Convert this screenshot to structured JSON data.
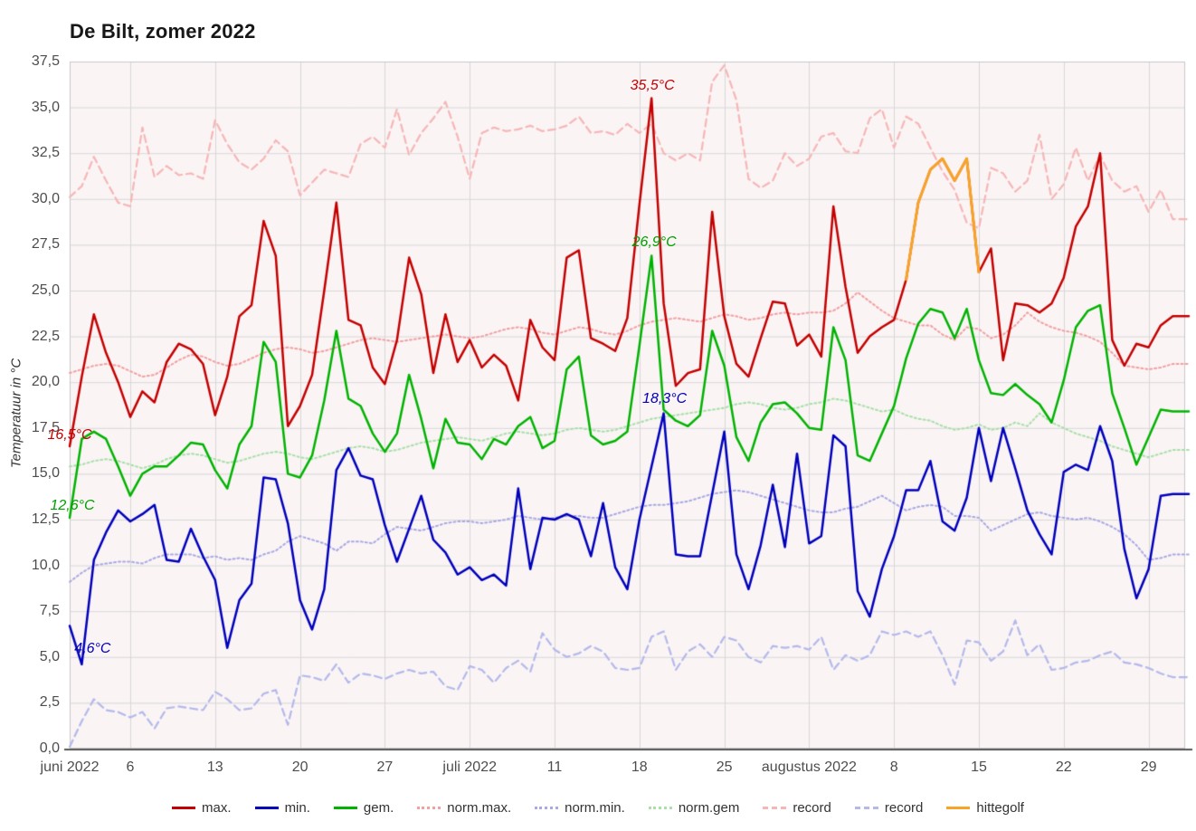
{
  "title": "De Bilt, zomer 2022",
  "y_axis_title": "Temperatuur in °C",
  "colors": {
    "max": "#c40000",
    "min": "#0000bb",
    "gem": "#00b300",
    "norm_max": "#f2a0a0",
    "norm_min": "#a9a9e3",
    "norm_gem": "#a8e0a8",
    "record_max": "#f7b6b6",
    "record_min": "#b4b9ea",
    "hittegolf": "#f7a428",
    "plot_bg": "#faf4f5",
    "grid": "#d8d8d8",
    "axis": "#555555",
    "tick_text": "#4d4d4d"
  },
  "legend": {
    "items": [
      {
        "label": "max.",
        "color": "#c40000",
        "style": "solid"
      },
      {
        "label": "min.",
        "color": "#0000bb",
        "style": "solid"
      },
      {
        "label": "gem.",
        "color": "#00b300",
        "style": "solid"
      },
      {
        "label": "norm.max.",
        "color": "#f2a0a0",
        "style": "dotted"
      },
      {
        "label": "norm.min.",
        "color": "#a9a9e3",
        "style": "dotted"
      },
      {
        "label": "norm.gem",
        "color": "#a8e0a8",
        "style": "dotted"
      },
      {
        "label": "record",
        "color": "#f7b6b6",
        "style": "dashed"
      },
      {
        "label": "record",
        "color": "#b4b9ea",
        "style": "dashed"
      },
      {
        "label": "hittegolf",
        "color": "#f7a428",
        "style": "solid"
      }
    ]
  },
  "chart_data": {
    "type": "line",
    "title": "De Bilt, zomer 2022",
    "xlabel": "",
    "ylabel": "Temperatuur in °C",
    "ylim": [
      0,
      37.5
    ],
    "y_tick_step": 2.5,
    "grid": true,
    "legend_position": "bottom",
    "x_start_date": "2022-06-01",
    "x_end_date": "2022-08-31",
    "y_ticks": [
      {
        "label": "0,0",
        "value": 0
      },
      {
        "label": "2,5",
        "value": 2.5
      },
      {
        "label": "5,0",
        "value": 5
      },
      {
        "label": "7,5",
        "value": 7.5
      },
      {
        "label": "10,0",
        "value": 10
      },
      {
        "label": "12,5",
        "value": 12.5
      },
      {
        "label": "15,0",
        "value": 15
      },
      {
        "label": "17,5",
        "value": 17.5
      },
      {
        "label": "20,0",
        "value": 20
      },
      {
        "label": "22,5",
        "value": 22.5
      },
      {
        "label": "25,0",
        "value": 25
      },
      {
        "label": "27,5",
        "value": 27.5
      },
      {
        "label": "30,0",
        "value": 30
      },
      {
        "label": "32,5",
        "value": 32.5
      },
      {
        "label": "35,0",
        "value": 35
      },
      {
        "label": "37,5",
        "value": 37.5
      }
    ],
    "x_ticks": [
      {
        "label": "juni 2022",
        "day_index": 0
      },
      {
        "label": "6",
        "day_index": 5
      },
      {
        "label": "13",
        "day_index": 12
      },
      {
        "label": "20",
        "day_index": 19
      },
      {
        "label": "27",
        "day_index": 26
      },
      {
        "label": "juli 2022",
        "day_index": 33
      },
      {
        "label": "11",
        "day_index": 40
      },
      {
        "label": "18",
        "day_index": 47
      },
      {
        "label": "25",
        "day_index": 54
      },
      {
        "label": "augustus 2022",
        "day_index": 61
      },
      {
        "label": "8",
        "day_index": 68
      },
      {
        "label": "15",
        "day_index": 75
      },
      {
        "label": "22",
        "day_index": 82
      },
      {
        "label": "29",
        "day_index": 89
      }
    ],
    "series": [
      {
        "name": "max.",
        "key": "max",
        "style": "solid",
        "color": "#c40000",
        "values": [
          16.5,
          20.3,
          23.7,
          21.6,
          20.0,
          18.1,
          19.5,
          18.9,
          21.1,
          22.1,
          21.8,
          21.0,
          18.2,
          20.3,
          23.6,
          24.2,
          28.8,
          26.9,
          17.6,
          18.7,
          20.4,
          25.0,
          29.8,
          23.4,
          23.1,
          20.8,
          19.9,
          22.3,
          26.8,
          24.8,
          20.5,
          23.7,
          21.1,
          22.3,
          20.8,
          21.5,
          20.9,
          19.0,
          23.4,
          21.9,
          21.2,
          26.8,
          27.2,
          22.4,
          22.1,
          21.7,
          23.5,
          29.7,
          35.5,
          24.3,
          19.8,
          20.5,
          20.7,
          29.3,
          23.6,
          21.0,
          20.3,
          22.4,
          24.4,
          24.3,
          22.0,
          22.6,
          21.4,
          29.6,
          25.2,
          21.6,
          22.5,
          23.0,
          23.4,
          25.6,
          29.8,
          31.6,
          32.2,
          31.0,
          32.2,
          26.0,
          27.3,
          21.2,
          24.3,
          24.2,
          23.8,
          24.3,
          25.7,
          28.5,
          29.6,
          32.5,
          22.3,
          20.9,
          22.1,
          21.9,
          23.1,
          23.6
        ]
      },
      {
        "name": "min.",
        "key": "min",
        "style": "solid",
        "color": "#0000bb",
        "values": [
          6.7,
          4.6,
          10.3,
          11.8,
          13.0,
          12.4,
          12.8,
          13.3,
          10.3,
          10.2,
          12.0,
          10.5,
          9.2,
          5.5,
          8.1,
          9.0,
          14.8,
          14.7,
          12.3,
          8.1,
          6.5,
          8.7,
          15.2,
          16.4,
          14.9,
          14.7,
          12.2,
          10.2,
          12.0,
          13.8,
          11.4,
          10.7,
          9.5,
          9.9,
          9.2,
          9.5,
          8.9,
          14.2,
          9.8,
          12.6,
          12.5,
          12.8,
          12.5,
          10.5,
          13.4,
          9.9,
          8.7,
          12.5,
          15.4,
          18.3,
          10.6,
          10.5,
          10.5,
          13.9,
          17.3,
          10.6,
          8.7,
          11.1,
          14.4,
          11.0,
          16.1,
          11.2,
          11.6,
          17.1,
          16.5,
          8.6,
          7.2,
          9.8,
          11.6,
          14.1,
          14.1,
          15.7,
          12.4,
          11.9,
          13.7,
          17.5,
          14.6,
          17.5,
          15.3,
          13.0,
          11.7,
          10.6,
          15.1,
          15.5,
          15.2,
          17.6,
          15.7,
          10.9,
          8.2,
          9.8,
          13.8,
          13.9
        ]
      },
      {
        "name": "gem.",
        "key": "gem",
        "style": "solid",
        "color": "#00b300",
        "values": [
          12.6,
          16.9,
          17.3,
          16.9,
          15.4,
          13.8,
          15.0,
          15.4,
          15.4,
          16.0,
          16.7,
          16.6,
          15.2,
          14.2,
          16.6,
          17.6,
          22.2,
          21.1,
          15.0,
          14.8,
          16.0,
          19.0,
          22.8,
          19.1,
          18.7,
          17.2,
          16.2,
          17.2,
          20.4,
          18.0,
          15.3,
          18.0,
          16.7,
          16.6,
          15.8,
          16.9,
          16.6,
          17.6,
          18.1,
          16.4,
          16.8,
          20.7,
          21.4,
          17.1,
          16.6,
          16.8,
          17.3,
          22.0,
          26.9,
          18.5,
          17.9,
          17.6,
          18.2,
          22.8,
          20.9,
          17.0,
          15.7,
          17.8,
          18.8,
          18.9,
          18.3,
          17.5,
          17.4,
          23.0,
          21.2,
          16.0,
          15.7,
          17.2,
          18.7,
          21.3,
          23.2,
          24.0,
          23.8,
          22.4,
          24.0,
          21.2,
          19.4,
          19.3,
          19.9,
          19.3,
          18.8,
          17.8,
          20.1,
          23.0,
          23.9,
          24.2,
          19.4,
          17.5,
          15.5,
          17.0,
          18.5,
          18.4
        ]
      },
      {
        "name": "norm.max.",
        "key": "norm_max",
        "style": "dotted",
        "color": "#f2a0a0",
        "values": [
          20.5,
          20.7,
          20.9,
          21.0,
          20.9,
          20.6,
          20.3,
          20.4,
          20.8,
          21.2,
          21.5,
          21.4,
          21.1,
          20.9,
          21.0,
          21.3,
          21.6,
          21.8,
          21.9,
          21.8,
          21.6,
          21.7,
          21.9,
          22.1,
          22.3,
          22.4,
          22.3,
          22.2,
          22.3,
          22.4,
          22.5,
          22.6,
          22.5,
          22.4,
          22.5,
          22.7,
          22.9,
          23.0,
          22.9,
          22.7,
          22.6,
          22.8,
          23.0,
          22.9,
          22.7,
          22.6,
          22.8,
          23.1,
          23.3,
          23.4,
          23.5,
          23.4,
          23.3,
          23.5,
          23.7,
          23.6,
          23.4,
          23.5,
          23.7,
          23.8,
          23.7,
          23.8,
          23.8,
          23.9,
          24.3,
          24.9,
          24.4,
          23.9,
          23.5,
          23.3,
          23.1,
          23.1,
          22.6,
          22.3,
          23.0,
          22.9,
          22.4,
          22.6,
          23.1,
          23.8,
          23.3,
          23.0,
          22.8,
          22.7,
          22.5,
          22.2,
          21.6,
          20.9,
          20.8,
          20.7,
          20.8,
          21.0
        ]
      },
      {
        "name": "norm.min.",
        "key": "norm_min",
        "style": "dotted",
        "color": "#a9a9e3",
        "values": [
          9.1,
          9.6,
          10.0,
          10.1,
          10.2,
          10.2,
          10.1,
          10.4,
          10.6,
          10.6,
          10.6,
          10.4,
          10.5,
          10.3,
          10.4,
          10.3,
          10.6,
          10.8,
          11.3,
          11.6,
          11.4,
          11.2,
          10.8,
          11.3,
          11.3,
          11.2,
          11.7,
          12.1,
          12.0,
          11.9,
          12.1,
          12.3,
          12.4,
          12.4,
          12.3,
          12.4,
          12.5,
          12.7,
          12.6,
          12.5,
          12.6,
          12.7,
          12.7,
          12.6,
          12.6,
          12.8,
          13.0,
          13.2,
          13.3,
          13.3,
          13.4,
          13.5,
          13.7,
          13.9,
          14.0,
          14.1,
          14.0,
          13.8,
          13.6,
          13.4,
          13.2,
          13.0,
          12.9,
          12.9,
          13.1,
          13.2,
          13.5,
          13.8,
          13.4,
          13.0,
          13.2,
          13.3,
          13.2,
          12.7,
          12.7,
          12.6,
          11.9,
          12.2,
          12.5,
          12.8,
          12.9,
          12.7,
          12.6,
          12.5,
          12.6,
          12.4,
          12.1,
          11.7,
          11.1,
          10.3,
          10.4,
          10.6
        ]
      },
      {
        "name": "norm.gem",
        "key": "norm_gem",
        "style": "dotted",
        "color": "#a8e0a8",
        "values": [
          15.4,
          15.5,
          15.7,
          15.8,
          15.7,
          15.5,
          15.3,
          15.5,
          15.8,
          16.0,
          16.1,
          16.0,
          15.8,
          15.6,
          15.7,
          15.9,
          16.1,
          16.2,
          16.1,
          15.9,
          15.8,
          16.0,
          16.2,
          16.4,
          16.5,
          16.4,
          16.2,
          16.3,
          16.5,
          16.7,
          16.8,
          16.9,
          17.0,
          16.9,
          16.8,
          17.0,
          17.2,
          17.3,
          17.2,
          17.1,
          17.2,
          17.4,
          17.5,
          17.4,
          17.3,
          17.4,
          17.6,
          17.8,
          18.0,
          18.1,
          18.2,
          18.3,
          18.4,
          18.5,
          18.6,
          18.8,
          18.9,
          18.8,
          18.6,
          18.5,
          18.6,
          18.8,
          18.9,
          19.1,
          19.0,
          18.8,
          18.6,
          18.4,
          18.5,
          18.2,
          18.0,
          17.9,
          17.6,
          17.4,
          17.5,
          17.7,
          17.4,
          17.5,
          17.8,
          17.6,
          18.3,
          17.8,
          17.5,
          17.2,
          17.0,
          16.8,
          16.5,
          16.3,
          16.1,
          15.9,
          16.1,
          16.3
        ]
      },
      {
        "name": "record",
        "key": "record_max",
        "style": "dashed",
        "color": "#f7b6b6",
        "values": [
          30.1,
          30.7,
          32.3,
          31.0,
          29.8,
          29.6,
          33.9,
          31.2,
          31.8,
          31.3,
          31.4,
          31.1,
          34.3,
          33.0,
          32.0,
          31.6,
          32.2,
          33.2,
          32.6,
          30.2,
          30.9,
          31.6,
          31.4,
          31.2,
          33.0,
          33.4,
          32.8,
          34.9,
          32.4,
          33.6,
          34.4,
          35.3,
          33.4,
          31.1,
          33.6,
          33.9,
          33.7,
          33.8,
          34.0,
          33.7,
          33.8,
          34.0,
          34.5,
          33.6,
          33.7,
          33.5,
          34.1,
          33.6,
          34.1,
          32.5,
          32.1,
          32.5,
          32.1,
          36.4,
          37.3,
          35.4,
          31.1,
          30.6,
          31.0,
          32.5,
          31.8,
          32.2,
          33.4,
          33.6,
          32.6,
          32.5,
          34.4,
          34.9,
          32.8,
          34.5,
          34.1,
          32.8,
          31.5,
          30.5,
          28.7,
          28.4,
          31.7,
          31.4,
          30.4,
          31.0,
          33.5,
          30.0,
          30.8,
          32.8,
          31.0,
          32.4,
          31.0,
          30.4,
          30.7,
          29.3,
          30.5,
          28.9
        ]
      },
      {
        "name": "record",
        "key": "record_min",
        "style": "dashed",
        "color": "#b4b9ea",
        "values": [
          0.1,
          1.5,
          2.7,
          2.1,
          2.0,
          1.7,
          2.0,
          1.1,
          2.2,
          2.3,
          2.2,
          2.1,
          3.1,
          2.7,
          2.1,
          2.2,
          3.0,
          3.2,
          1.3,
          4.0,
          3.9,
          3.7,
          4.6,
          3.6,
          4.1,
          4.0,
          3.8,
          4.1,
          4.3,
          4.1,
          4.2,
          3.4,
          3.2,
          4.5,
          4.3,
          3.6,
          4.4,
          4.8,
          4.2,
          6.3,
          5.4,
          5.0,
          5.2,
          5.6,
          5.3,
          4.4,
          4.3,
          4.4,
          6.1,
          6.4,
          4.3,
          5.3,
          5.7,
          5.0,
          6.1,
          5.9,
          5.0,
          4.7,
          5.6,
          5.5,
          5.6,
          5.4,
          6.1,
          4.3,
          5.1,
          4.8,
          5.1,
          6.4,
          6.2,
          6.4,
          6.1,
          6.4,
          5.1,
          3.5,
          5.9,
          5.8,
          4.8,
          5.3,
          7.0,
          5.1,
          5.7,
          4.3,
          4.4,
          4.7,
          4.8,
          5.1,
          5.3,
          4.7,
          4.6,
          4.4,
          4.1,
          3.9
        ]
      },
      {
        "name": "hittegolf",
        "key": "hittegolf",
        "style": "solid",
        "color": "#f7a428",
        "start_index": 69,
        "values": [
          25.6,
          29.8,
          31.6,
          32.2,
          31.0,
          32.2,
          26.0
        ]
      }
    ],
    "annotations": [
      {
        "text": "35,5°C",
        "series": "max",
        "day_index": 48,
        "value": 35.5,
        "color": "#c40000"
      },
      {
        "text": "26,9°C",
        "series": "gem",
        "day_index": 48,
        "value": 26.9,
        "color": "#00a000"
      },
      {
        "text": "18,3°C",
        "series": "min",
        "day_index": 49,
        "value": 18.3,
        "color": "#0000bb"
      },
      {
        "text": "16,5°C",
        "series": "max",
        "day_index": 0,
        "value": 16.5,
        "color": "#c40000"
      },
      {
        "text": "12,6°C",
        "series": "gem",
        "day_index": 0,
        "value": 12.6,
        "color": "#00a000"
      },
      {
        "text": "4,6°C",
        "series": "min",
        "day_index": 1,
        "value": 4.6,
        "color": "#0000bb"
      }
    ]
  }
}
